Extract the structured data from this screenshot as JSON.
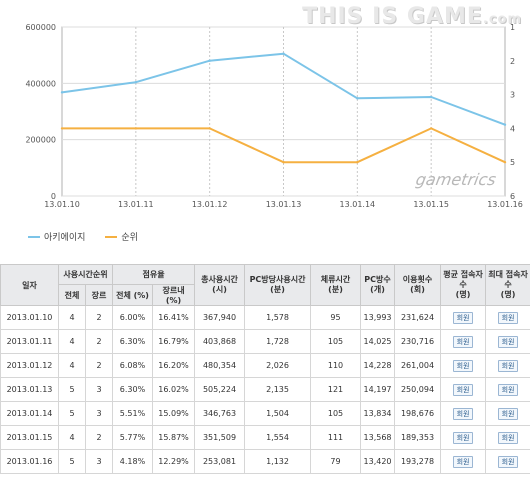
{
  "branding": {
    "logo_text": "THIS IS GAME",
    "logo_suffix": ".com",
    "watermark": "gametrics"
  },
  "chart_data": {
    "type": "line",
    "categories": [
      "13.01.10",
      "13.01.11",
      "13.01.12",
      "13.01.13",
      "13.01.14",
      "13.01.15",
      "13.01.16"
    ],
    "series": [
      {
        "name": "아키에이지",
        "axis": "left",
        "color": "#7cc4e8",
        "values": [
          367940,
          403868,
          480354,
          505224,
          346763,
          351509,
          253081
        ]
      },
      {
        "name": "순위",
        "axis": "right",
        "color": "#f5b041",
        "values": [
          4,
          4,
          4,
          5,
          5,
          4,
          5
        ]
      }
    ],
    "y_left": {
      "min": 0,
      "max": 600000,
      "ticks": [
        "0",
        "200000",
        "400000",
        "600000"
      ]
    },
    "y_right": {
      "min": 1,
      "max": 6,
      "inverted": true,
      "ticks": [
        "1",
        "2",
        "3",
        "4",
        "5",
        "6"
      ]
    },
    "grid": true,
    "legend_position": "bottom-left"
  },
  "table": {
    "head1": {
      "date": "일자",
      "rank": "사용시간순위",
      "share": "점유율",
      "total_time": "총사용시간",
      "total_time_unit": "(시)",
      "pc_time": "PC방당사용시간",
      "pc_time_unit": "(분)",
      "stay_time": "체류시간",
      "stay_time_unit": "(분)",
      "pc_count": "PC방수",
      "pc_count_unit": "(개)",
      "use_count": "이용횟수",
      "use_count_unit": "(회)",
      "daily_users": "평균 접속자수",
      "daily_users_unit": "(명)",
      "max_users": "최대 접속자수",
      "max_users_unit": "(명)"
    },
    "head2": {
      "rank_all": "전체",
      "rank_genre": "장르",
      "share_all": "전체 (%)",
      "share_genre": "장르내 (%)"
    },
    "button_label": "회원",
    "rows": [
      {
        "date": "2013.01.10",
        "rank_all": "4",
        "rank_genre": "2",
        "share_all": "6.00%",
        "share_genre": "16.41%",
        "total": "367,940",
        "pc_time": "1,578",
        "stay": "95",
        "pcs": "13,993",
        "uses": "231,624"
      },
      {
        "date": "2013.01.11",
        "rank_all": "4",
        "rank_genre": "2",
        "share_all": "6.30%",
        "share_genre": "16.79%",
        "total": "403,868",
        "pc_time": "1,728",
        "stay": "105",
        "pcs": "14,025",
        "uses": "230,716"
      },
      {
        "date": "2013.01.12",
        "rank_all": "4",
        "rank_genre": "2",
        "share_all": "6.08%",
        "share_genre": "16.20%",
        "total": "480,354",
        "pc_time": "2,026",
        "stay": "110",
        "pcs": "14,228",
        "uses": "261,004"
      },
      {
        "date": "2013.01.13",
        "rank_all": "5",
        "rank_genre": "3",
        "share_all": "6.30%",
        "share_genre": "16.02%",
        "total": "505,224",
        "pc_time": "2,135",
        "stay": "121",
        "pcs": "14,197",
        "uses": "250,094"
      },
      {
        "date": "2013.01.14",
        "rank_all": "5",
        "rank_genre": "3",
        "share_all": "5.51%",
        "share_genre": "15.09%",
        "total": "346,763",
        "pc_time": "1,504",
        "stay": "105",
        "pcs": "13,834",
        "uses": "198,676"
      },
      {
        "date": "2013.01.15",
        "rank_all": "4",
        "rank_genre": "2",
        "share_all": "5.77%",
        "share_genre": "15.87%",
        "total": "351,509",
        "pc_time": "1,554",
        "stay": "111",
        "pcs": "13,568",
        "uses": "189,353"
      },
      {
        "date": "2013.01.16",
        "rank_all": "5",
        "rank_genre": "3",
        "share_all": "4.18%",
        "share_genre": "12.29%",
        "total": "253,081",
        "pc_time": "1,132",
        "stay": "79",
        "pcs": "13,420",
        "uses": "193,278"
      }
    ]
  }
}
